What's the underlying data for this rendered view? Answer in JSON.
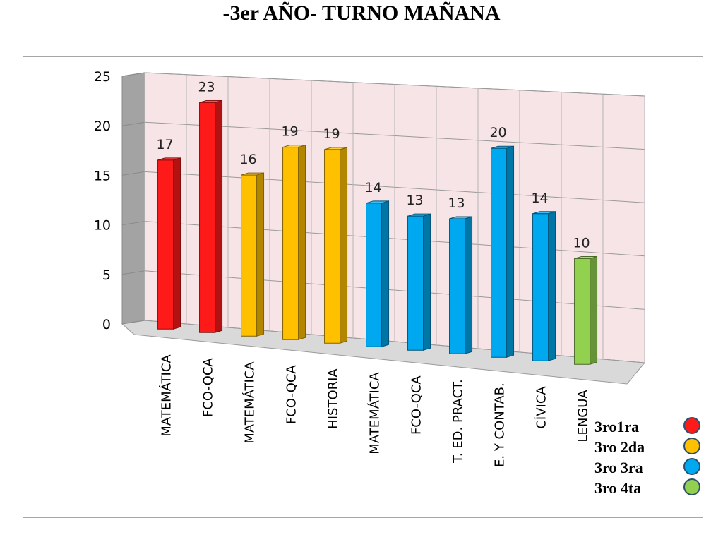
{
  "chart_data": {
    "type": "bar",
    "title": "-3er AÑO- TURNO MAÑANA",
    "categories": [
      "MATEMÁTICA",
      "FCO-QCA",
      "MATEMÁTICA",
      "FCO-QCA",
      "HISTORIA",
      "MATEMÁTICA",
      "FCO-QCA",
      "T. ED. PRACT.",
      "E. Y CONTAB.",
      "CÍVICA",
      "LENGUA"
    ],
    "values": [
      17,
      23,
      16,
      19,
      19,
      14,
      13,
      13,
      20,
      14,
      10
    ],
    "groups": [
      0,
      0,
      1,
      1,
      1,
      2,
      2,
      2,
      2,
      2,
      3
    ],
    "ylim": [
      0,
      25
    ],
    "yticks": [
      "0",
      "5",
      "10",
      "15",
      "20",
      "25"
    ],
    "grid": true,
    "legend_position": "bottom-right",
    "legend": [
      {
        "label": "3ro1ra",
        "color": "#ff1a1a"
      },
      {
        "label": "3ro 2da",
        "color": "#ffc000"
      },
      {
        "label": "3ro 3ra",
        "color": "#00a8ef"
      },
      {
        "label": "3ro 4ta",
        "color": "#92d050"
      }
    ]
  }
}
